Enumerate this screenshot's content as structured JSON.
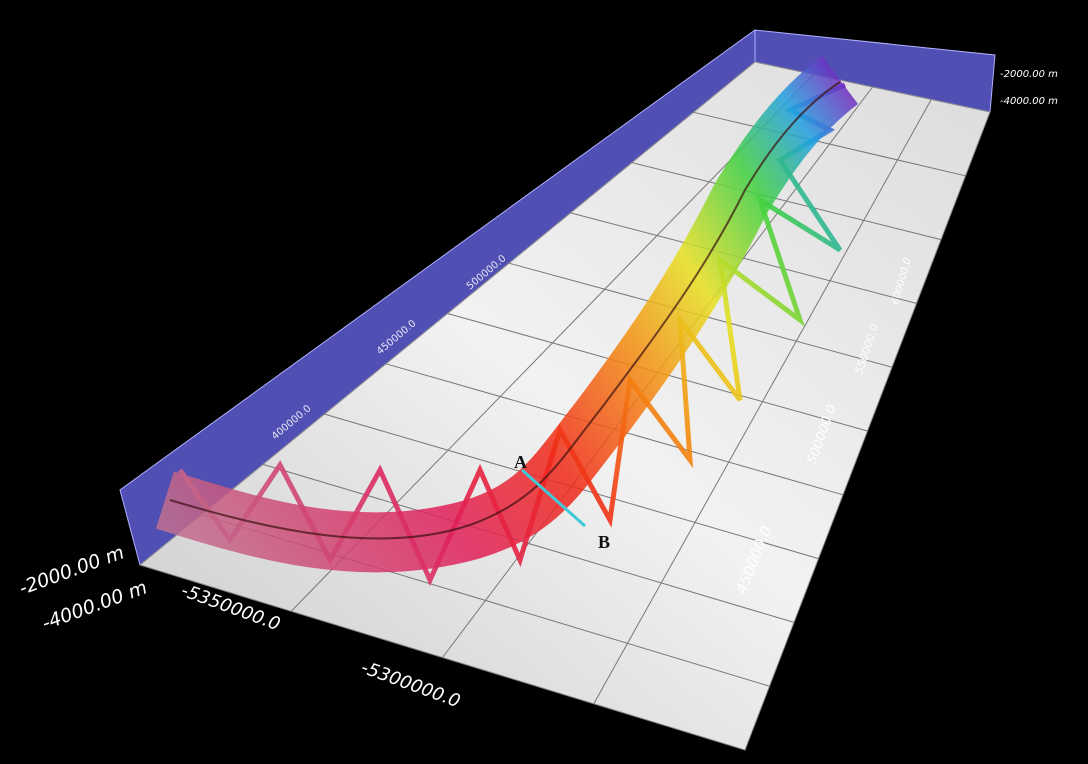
{
  "depth_axis": {
    "labels": [
      "-2000.00 m",
      "-4000.00 m"
    ]
  },
  "x_axis": {
    "labels": [
      "-5350000.0",
      "-5300000.0"
    ]
  },
  "y_axis": {
    "labels": [
      "450000.0",
      "500000.0",
      "550000.0",
      "600000.0"
    ]
  },
  "wall_axis": {
    "labels": [
      "400000.0",
      "450000.0",
      "500000.0"
    ]
  },
  "profile": {
    "start": "A",
    "end": "B"
  }
}
